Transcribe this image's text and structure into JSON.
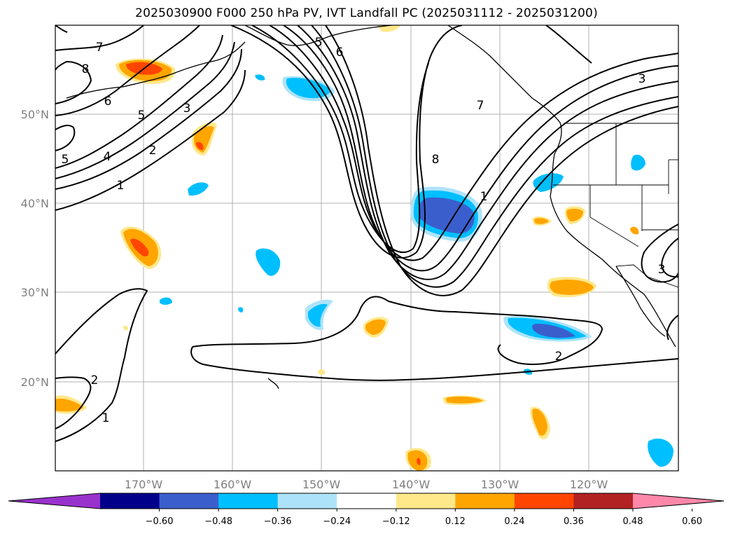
{
  "title": "2025030900 F000 250 hPa PV, IVT Landfall PC (2025031112 - 2025031200)",
  "map": {
    "latitude_labels": [
      "50°N",
      "40°N",
      "30°N",
      "20°N"
    ],
    "longitude_labels": [
      "170°W",
      "160°W",
      "150°W",
      "140°W",
      "130°W",
      "120°W"
    ],
    "gridlines": true
  },
  "contour_labels": [
    "7",
    "8",
    "6",
    "5",
    "5",
    "4",
    "3",
    "2",
    "1",
    "5",
    "6",
    "8",
    "7",
    "1",
    "3",
    "3",
    "2",
    "2",
    "1"
  ],
  "colorbar": {
    "tick_labels": [
      "−0.60",
      "−0.48",
      "−0.36",
      "−0.24",
      "−0.12",
      "0.12",
      "0.24",
      "0.36",
      "0.48",
      "0.60"
    ],
    "colors": [
      "#9932CC",
      "#00008B",
      "#3A5FCD",
      "#00BFFF",
      "#ADE3FA",
      "#FFFFFF",
      "#FFE88A",
      "#FFA500",
      "#FF4500",
      "#B22222",
      "#FF88AA"
    ],
    "extend": "both"
  }
}
